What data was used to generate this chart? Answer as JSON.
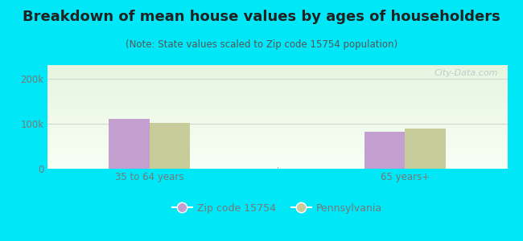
{
  "title": "Breakdown of mean house values by ages of householders",
  "subtitle": "(Note: State values scaled to Zip code 15754 population)",
  "categories": [
    "35 to 64 years",
    "65 years+"
  ],
  "zip_values": [
    110000,
    82000
  ],
  "state_values": [
    102000,
    90000
  ],
  "ylim": [
    0,
    230000
  ],
  "ytick_labels": [
    "0",
    "100k",
    "200k"
  ],
  "ytick_values": [
    0,
    100000,
    200000
  ],
  "zip_color": "#c4a0d0",
  "state_color": "#c8cc9a",
  "background_outer": "#00e8f8",
  "bar_width": 0.32,
  "legend_zip": "Zip code 15754",
  "legend_state": "Pennsylvania",
  "watermark": "City-Data.com",
  "title_fontsize": 13,
  "subtitle_fontsize": 8.5,
  "tick_fontsize": 8.5,
  "legend_fontsize": 9,
  "title_color": "#222222",
  "subtitle_color": "#555555",
  "tick_color": "#777777"
}
